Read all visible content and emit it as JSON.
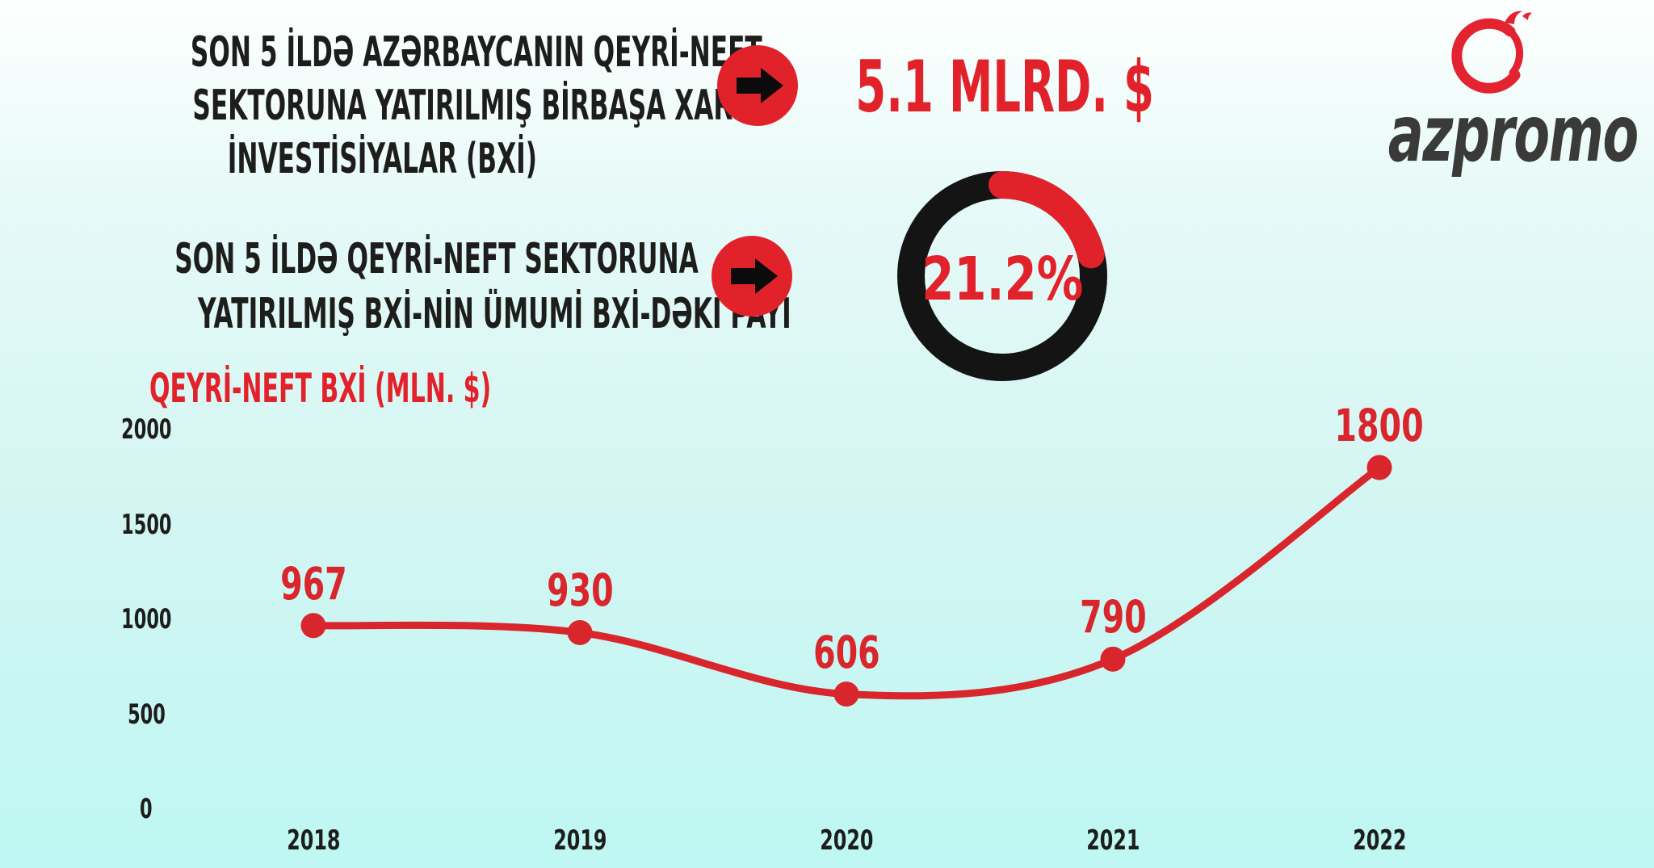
{
  "colors": {
    "background_top": "#FDFFFE",
    "background_mid": "#D5F6F3",
    "background_bottom": "#BEF7F3",
    "accent_red": "#E2222A",
    "chart_red": "#D8262C",
    "text_dark": "#1D1D1B",
    "donut_black": "#141414",
    "logo_gray": "#3A3A38",
    "logo_red": "#E32330"
  },
  "header": {
    "block1": {
      "lines": [
        "SON 5 İLDƏ AZƏRBAYCANIN QEYRİ-NEFT",
        "SEKTORUNA YATIRILMIŞ BİRBAŞA XARİCİ",
        "İNVESTİSİYALAR (BXİ)"
      ]
    },
    "stat1": {
      "value": "5.1 MLRD. $"
    },
    "block2": {
      "lines": [
        "SON 5 İLDƏ QEYRİ-NEFT SEKTORUNA",
        "YATIRILMIŞ BXİ-NİN ÜMUMİ BXİ-DƏKİ PAYI"
      ]
    },
    "stat2": {
      "value": "21.2%",
      "percent": 21.2
    }
  },
  "logo": {
    "text": "azpromo",
    "icon": "pomegranate-swirl-icon"
  },
  "chart_data": {
    "type": "line",
    "title": "QEYRİ-NEFT BXİ (MLN. $)",
    "categories": [
      "2018",
      "2019",
      "2020",
      "2021",
      "2022"
    ],
    "values": [
      967,
      930,
      606,
      790,
      1800
    ],
    "yticks": [
      2000,
      1500,
      1000,
      500,
      0
    ],
    "ylim": [
      0,
      2000
    ],
    "xlabel": "",
    "ylabel": "QEYRİ-NEFT BXİ (MLN. $)",
    "grid": false,
    "legend": "none",
    "smooth": true,
    "marker": "circle",
    "line_color": "#D8262C",
    "data_labels": true
  }
}
